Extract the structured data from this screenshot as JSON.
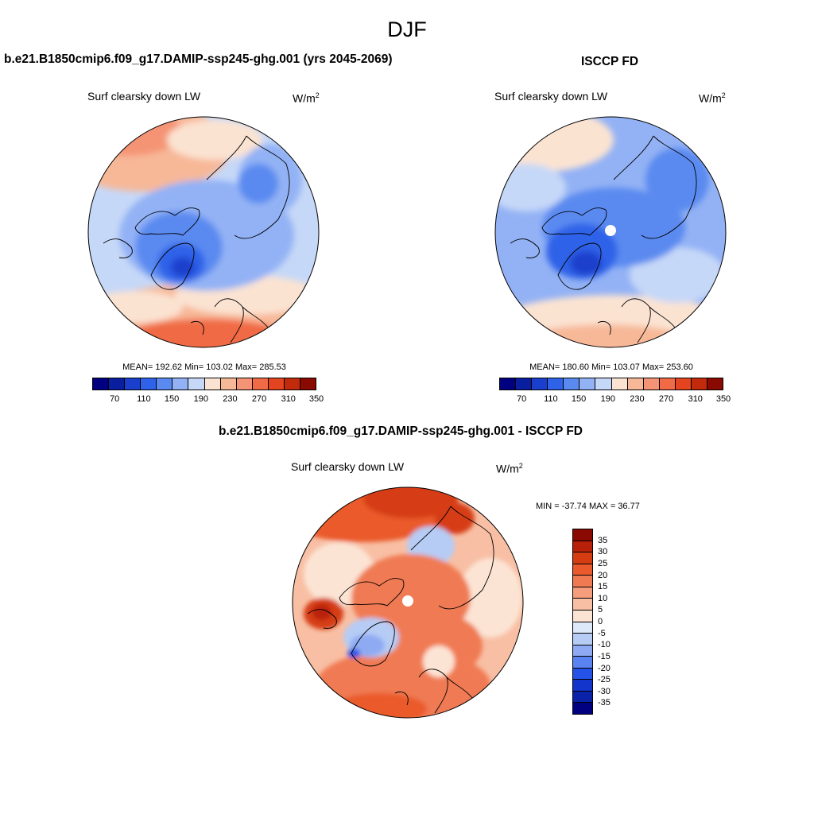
{
  "title": "DJF",
  "colors": {
    "scale": [
      "#000080",
      "#0a1fa0",
      "#1a3fcc",
      "#2e62e8",
      "#5a8af0",
      "#93b2f5",
      "#c6d8f8",
      "#fbe3d2",
      "#f7b898",
      "#f49474",
      "#f06a45",
      "#e4441e",
      "#c22a0c",
      "#8a0a02"
    ],
    "diff_scale": [
      "#000080",
      "#0a22a8",
      "#1435cc",
      "#2452e8",
      "#5a82f0",
      "#8eaaf2",
      "#b6ccf5",
      "#dde8f9",
      "#fce4d4",
      "#f8bfa4",
      "#f59d7c",
      "#f07a52",
      "#ea5a2c",
      "#d63d12",
      "#b8200a",
      "#8a0a02"
    ]
  },
  "panels": [
    {
      "case_title": "b.e21.B1850cmip6.f09_g17.DAMIP-ssp245-ghg.001 (yrs 2045-2069)",
      "var_title": "Surf clearsky down LW",
      "units": "W/m",
      "units_exp": "2",
      "stats": "MEAN= 192.62  Min= 103.02  Max= 285.53",
      "colorbar_labels": [
        "70",
        "110",
        "150",
        "190",
        "230",
        "270",
        "310",
        "350"
      ]
    },
    {
      "case_title": "ISCCP FD",
      "var_title": "Surf clearsky down LW",
      "units": "W/m",
      "units_exp": "2",
      "stats": "MEAN= 180.60  Min= 103.07  Max= 253.60",
      "colorbar_labels": [
        "70",
        "110",
        "150",
        "190",
        "230",
        "270",
        "310",
        "350"
      ]
    },
    {
      "case_title": "b.e21.B1850cmip6.f09_g17.DAMIP-ssp245-ghg.001 - ISCCP FD",
      "var_title": "Surf clearsky down LW",
      "units": "W/m",
      "units_exp": "2",
      "stats": "MIN = -37.74 MAX =  36.77",
      "colorbar_labels": [
        "35",
        "30",
        "25",
        "20",
        "15",
        "10",
        "5",
        "0",
        "-5",
        "-10",
        "-15",
        "-20",
        "-25",
        "-30",
        "-35"
      ]
    }
  ]
}
